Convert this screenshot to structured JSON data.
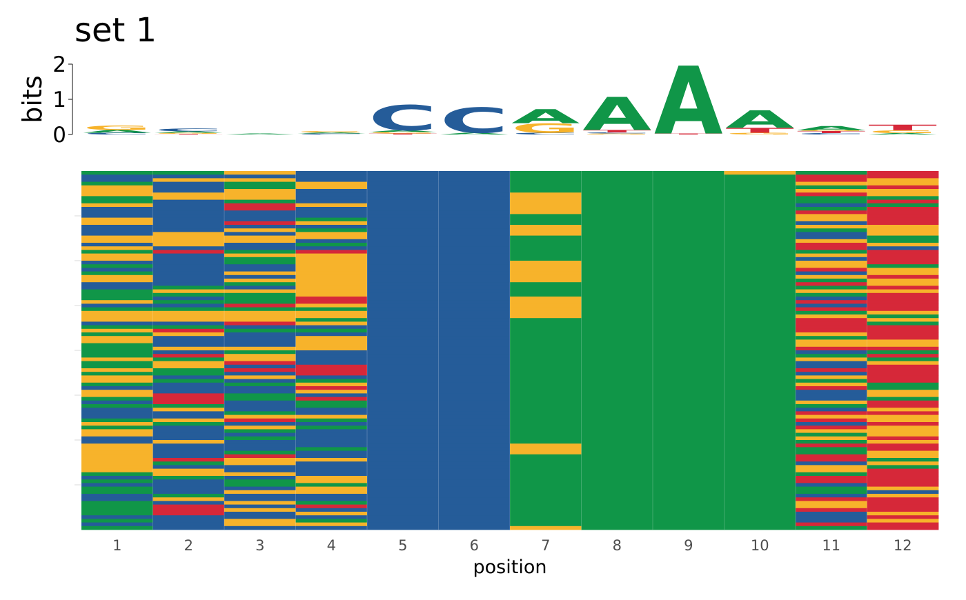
{
  "chart_data": [
    {
      "type": "sequence-logo",
      "title": "set 1",
      "ylabel": "bits",
      "ylim": [
        0,
        2
      ],
      "yticks": [
        "0",
        "1",
        "2"
      ],
      "xlabel": "",
      "positions": [
        1,
        2,
        3,
        4,
        5,
        6,
        7,
        8,
        9,
        10,
        11,
        12
      ],
      "letter_colors": {
        "A": "#109648",
        "C": "#255C99",
        "G": "#F7B32B",
        "T": "#D62839"
      },
      "letters": [
        [
          {
            "l": "C",
            "h": 0.05
          },
          {
            "l": "A",
            "h": 0.08
          },
          {
            "l": "G",
            "h": 0.12
          }
        ],
        [
          {
            "l": "T",
            "h": 0.02
          },
          {
            "l": "G",
            "h": 0.03
          },
          {
            "l": "A",
            "h": 0.04
          },
          {
            "l": "C",
            "h": 0.08
          }
        ],
        [
          {
            "l": "A",
            "h": 0.03
          }
        ],
        [
          {
            "l": "C",
            "h": 0.03
          },
          {
            "l": "A",
            "h": 0.03
          },
          {
            "l": "G",
            "h": 0.04
          }
        ],
        [
          {
            "l": "T",
            "h": 0.03
          },
          {
            "l": "G",
            "h": 0.04
          },
          {
            "l": "A",
            "h": 0.05
          },
          {
            "l": "C",
            "h": 0.72
          }
        ],
        [
          {
            "l": "A",
            "h": 0.05
          },
          {
            "l": "C",
            "h": 0.72
          }
        ],
        [
          {
            "l": "C",
            "h": 0.05
          },
          {
            "l": "G",
            "h": 0.27
          },
          {
            "l": "A",
            "h": 0.4
          }
        ],
        [
          {
            "l": "G",
            "h": 0.03
          },
          {
            "l": "C",
            "h": 0.03
          },
          {
            "l": "T",
            "h": 0.07
          },
          {
            "l": "A",
            "h": 0.94
          }
        ],
        [
          {
            "l": "T",
            "h": 0.03
          },
          {
            "l": "A",
            "h": 1.93
          }
        ],
        [
          {
            "l": "G",
            "h": 0.05
          },
          {
            "l": "T",
            "h": 0.14
          },
          {
            "l": "A",
            "h": 0.5
          }
        ],
        [
          {
            "l": "C",
            "h": 0.04
          },
          {
            "l": "T",
            "h": 0.06
          },
          {
            "l": "G",
            "h": 0.02
          },
          {
            "l": "A",
            "h": 0.12
          }
        ],
        [
          {
            "l": "A",
            "h": 0.04
          },
          {
            "l": "G",
            "h": 0.08
          },
          {
            "l": "T",
            "h": 0.16
          }
        ]
      ]
    },
    {
      "type": "heatmap",
      "xlabel": "position",
      "x": [
        "1",
        "2",
        "3",
        "4",
        "5",
        "6",
        "7",
        "8",
        "9",
        "10",
        "11",
        "12"
      ],
      "n_sequences": 100,
      "legend": "none",
      "colors": {
        "A": "#109648",
        "C": "#255C99",
        "G": "#F7B32B",
        "T": "#D62839"
      },
      "columns": [
        "ACCAGGGAAGCCCGGCCCGGCGAGGCACAGGCCAAAGCAGGGCAGAGGAAAAGAAGAGGACGGACACCCAGAGGCCGGGGGGGGACACAACCAAAACAC",
        "ACGCCCGGCCCCCCCCCGGGGCTCCCCCCCCCAGACACAGGGCATGCCCGCTAGGAACACCCTTTAGCCGACCCCGCCCCTACGGACCCCAGCTTTCCCC",
        "GCGAAGGGATTCCCTCGCGGCCAGAACCGCGACGAAATAGGGTCACCCCGAGGTCTCGCACCAACCCAGTCGACACCCATGGCCGCAACGCCGCGCCGGC",
        "CCCGGCCCCGCCCAGCAGGCACTGGGGGGGGGGGGTTGAGGAGCACGGGGCCCCTTTCAGTGCTAACCGACACCCCCACCGCCCCGGAGGCCATCGCAGC",
        "CCCCCCCCCCCCCCCCCCCCCCCCCCCCCCCCCCCCCCCCCCCCCCCCCCCCCCCCCCCCCCCCCCCCCCCCCCCCCCCCCCCCCCCCCCCCCCCCCCCCCC",
        "CCCCCCCCCCCCCCCCCCCCCCCCCCCCCCCCCCCCCCCCCCCCCCCCCCCCCCCCCCCCCCCCCCCCCCCCCCCCCCCCCCCCCCCCCCCCCCCCCCCCCC",
        "AAAAAAGGGGGGAAAGGGAAAAAAAGGGGGGAAAAGGGGGGAAAAAAAAAAAAAAAAAAAAAAAAAAAAAAAAAAAGGGAAAAAAAAAAAAAAAAAAAAG",
        "AAAAAAAAAAAAAAAAAAAAAAAAAAAAAAAAAAAAAAAAAAAAAAAAAAAAAAAAAAAAAAAAAAAAAAAAAAAAAAAAAAAAAAAAAAAAAAAAAAAAAA",
        "AAAAAAAAAAAAAAAAAAAAAAAAAAAAAAAAAAAAAAAAAAAAAAAAAAAAAAAAAAAAAAAAAAAAAAAAAAAAAAAAAAAAAAAAAAAAAAAAAAAAAA",
        "GAAAAAAAAAAAAAAAAAAAAAAAAAAAAAAAAAAAAAAAAAAAAAAAAAAAAAAAAAAAAAAAAAAAAAAAAAAAAAAAAAAAAAAAAAAAAAAAAAAAAG",
        "ATTGAGTAACATGGCGACCGTTAGCGGTCGATAGACTCTAGTTTTGAGGTCAGCCTCGAGTCCCGACTGTCTGAGATAATTCGGATTCAACTGGTCCCTAAA",
        "TTGGTGGATATTTTTGGGAAGCTTTTAGGTGGTGTTTTTGAGATTTTGGTATAGTTTTTAAGGATTGTGGTGGGTGTTGGAGATTTTTGCGTTTTGTGTT"
      ]
    }
  ]
}
